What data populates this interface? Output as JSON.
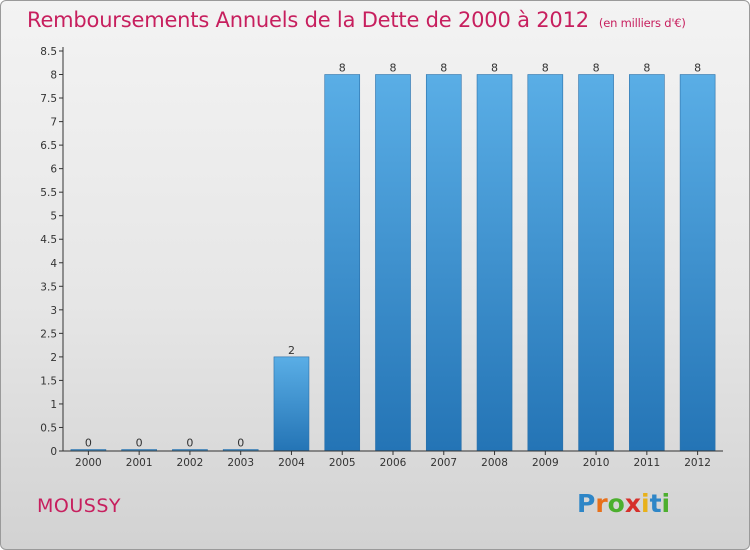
{
  "header": {
    "title": "Remboursements Annuels de la Dette de 2000 à 2012",
    "unit": "(en milliers d'€)"
  },
  "footer": {
    "place": "MOUSSY",
    "brand": "Proxiti",
    "brand_letter_colors": [
      "#2e86c7",
      "#e8701a",
      "#4caf2e",
      "#d6302b",
      "#e8b11a",
      "#2e86c7",
      "#4caf2e"
    ]
  },
  "colors": {
    "bar_light": "#5aaee6",
    "bar_dark": "#2474b5",
    "title": "#c71f5e"
  },
  "chart_data": {
    "type": "bar",
    "title": "Remboursements Annuels de la Dette de 2000 à 2012",
    "xlabel": "",
    "ylabel": "",
    "categories": [
      "2000",
      "2001",
      "2002",
      "2003",
      "2004",
      "2005",
      "2006",
      "2007",
      "2008",
      "2009",
      "2010",
      "2011",
      "2012"
    ],
    "values": [
      0,
      0,
      0,
      0,
      2,
      8,
      8,
      8,
      8,
      8,
      8,
      8,
      8
    ],
    "value_labels": [
      "0",
      "0",
      "0",
      "0",
      "2",
      "8",
      "8",
      "8",
      "8",
      "8",
      "8",
      "8",
      "8"
    ],
    "ylim": [
      0,
      8.5
    ],
    "yticks": [
      0,
      0.5,
      1,
      1.5,
      2,
      2.5,
      3,
      3.5,
      4,
      4.5,
      5,
      5.5,
      6,
      6.5,
      7,
      7.5,
      8,
      8.5
    ],
    "ytick_labels": [
      "0",
      "0.5",
      "1",
      "1.5",
      "2",
      "2.5",
      "3",
      "3.5",
      "4",
      "4.5",
      "5",
      "5.5",
      "6",
      "6.5",
      "7",
      "7.5",
      "8",
      "8.5"
    ],
    "grid": false
  }
}
